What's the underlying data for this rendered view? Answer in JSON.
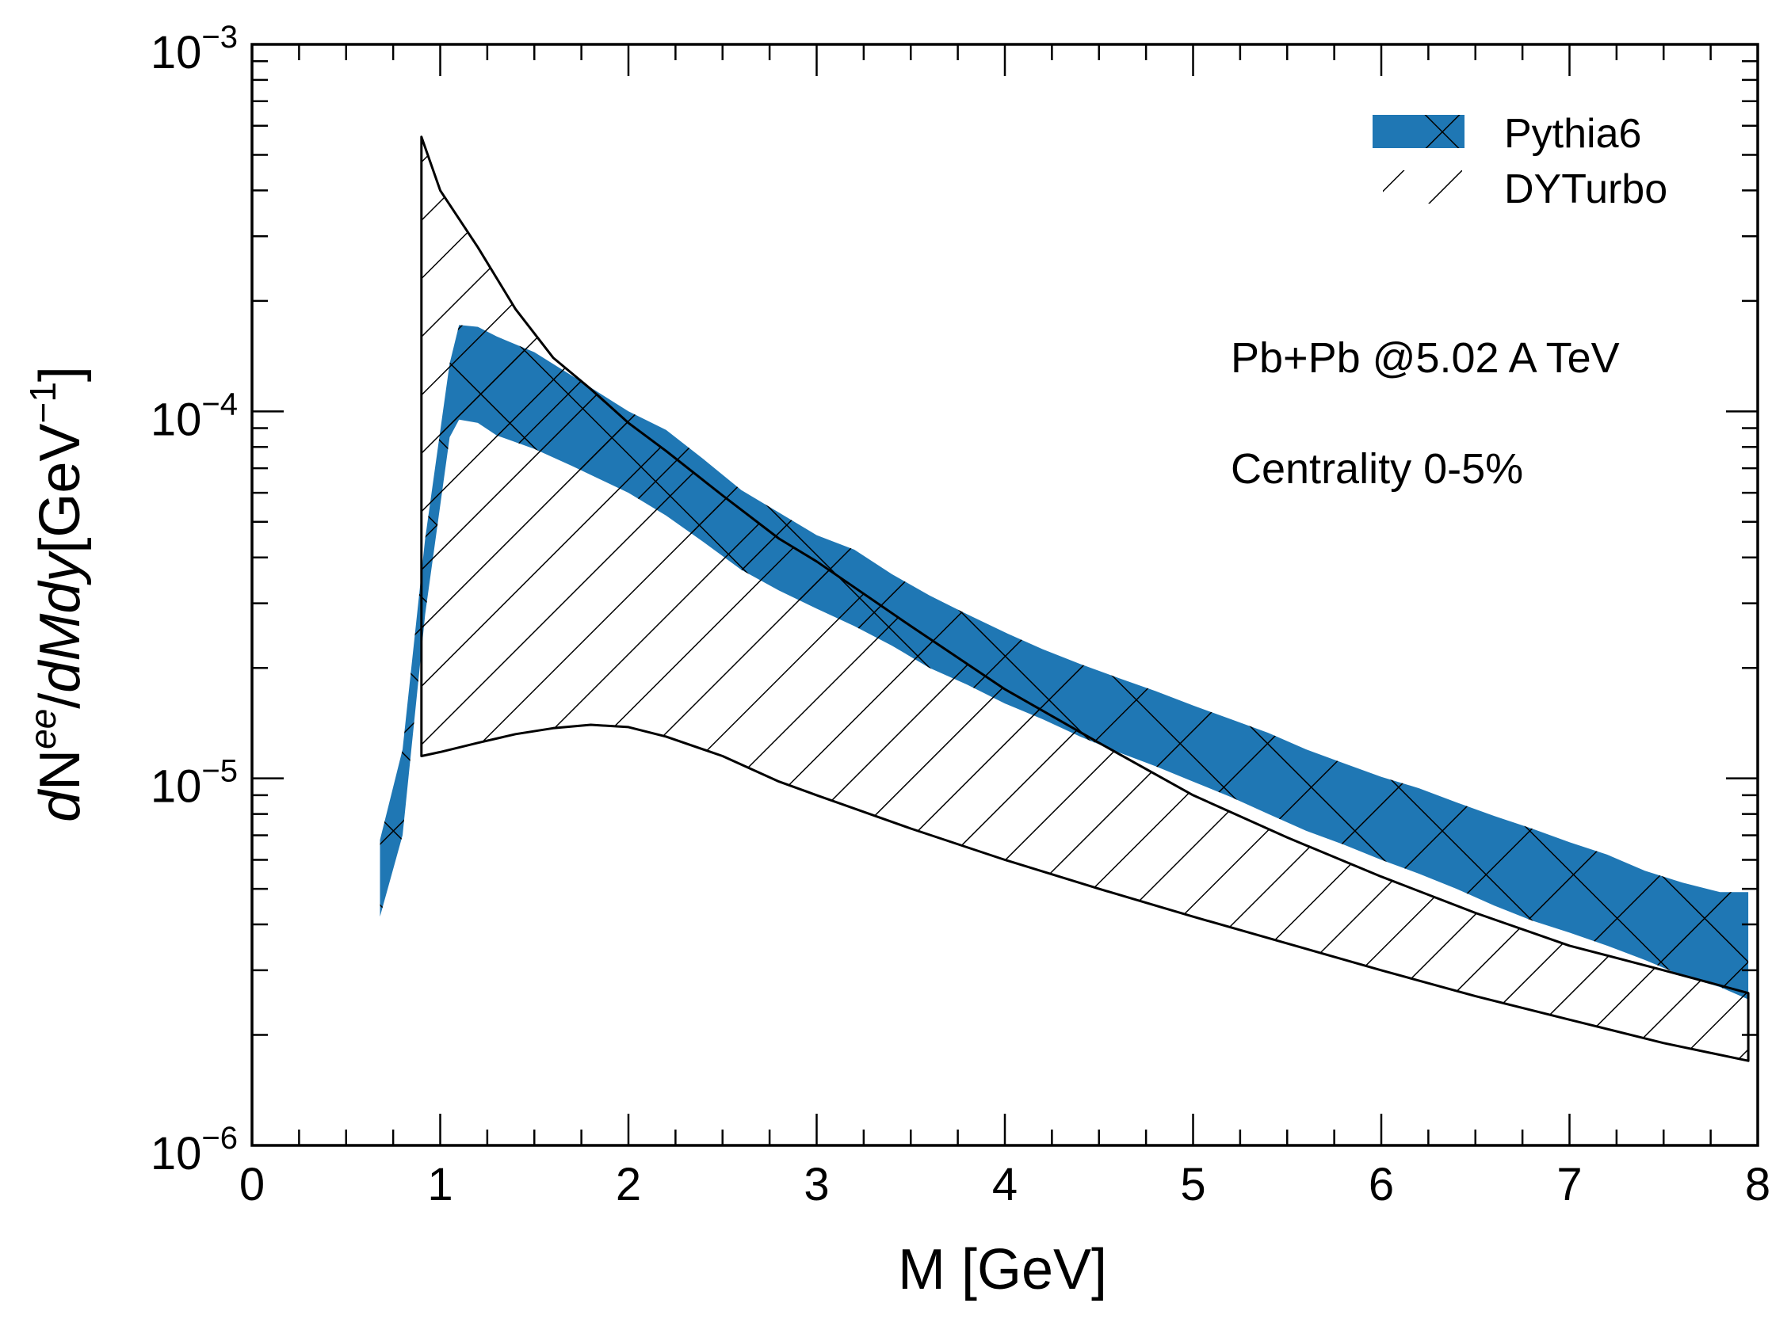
{
  "chart_data": {
    "type": "area",
    "title": "",
    "xlabel": "M [GeV]",
    "ylabel": {
      "d1": "d",
      "N": "N",
      "sup_ee": "ee",
      "slash": "/",
      "dMdy": "dMdy",
      "unit_open": "[GeV",
      "unit_exp": "−1",
      "unit_close": "]"
    },
    "xlim": [
      0,
      8
    ],
    "ylim": [
      1e-06,
      0.001
    ],
    "yscale": "log",
    "x_ticks": [
      "0",
      "1",
      "2",
      "3",
      "4",
      "5",
      "6",
      "7",
      "8"
    ],
    "y_ticks": [
      {
        "base": "10",
        "exp": "−6",
        "value": 1e-06
      },
      {
        "base": "10",
        "exp": "−5",
        "value": 1e-05
      },
      {
        "base": "10",
        "exp": "−4",
        "value": 0.0001
      },
      {
        "base": "10",
        "exp": "−3",
        "value": 0.001
      }
    ],
    "annotations": [
      "Pb+Pb @5.02 A TeV",
      "Centrality 0-5%"
    ],
    "legend": {
      "position": "top-right",
      "entries": [
        "Pythia6",
        "DYTurbo"
      ]
    },
    "colors": {
      "pythia_fill": "#1f77b4",
      "frame": "#000000",
      "hatch": "#000000"
    },
    "series": [
      {
        "name": "Pythia6",
        "style": "filled band with cross hatch",
        "x": [
          0.68,
          0.8,
          0.92,
          1.05,
          1.1,
          1.2,
          1.3,
          1.5,
          1.7,
          2.0,
          2.2,
          2.4,
          2.6,
          2.8,
          3.0,
          3.2,
          3.4,
          3.6,
          3.8,
          4.0,
          4.2,
          4.4,
          4.6,
          4.8,
          5.0,
          5.2,
          5.4,
          5.6,
          5.8,
          6.0,
          6.2,
          6.4,
          6.6,
          6.8,
          7.0,
          7.2,
          7.4,
          7.6,
          7.8,
          7.95
        ],
        "upper": [
          6.8e-06,
          1.2e-05,
          4.5e-05,
          0.000135,
          0.000172,
          0.00017,
          0.00016,
          0.000145,
          0.000125,
          0.0001,
          8.9e-05,
          7.4e-05,
          6.1e-05,
          5.3e-05,
          4.6e-05,
          4.2e-05,
          3.6e-05,
          3.15e-05,
          2.8e-05,
          2.5e-05,
          2.25e-05,
          2.05e-05,
          1.88e-05,
          1.73e-05,
          1.58e-05,
          1.45e-05,
          1.33e-05,
          1.2e-05,
          1.1e-05,
          1.01e-05,
          9.4e-06,
          8.6e-06,
          7.9e-06,
          7.3e-06,
          6.7e-06,
          6.2e-06,
          5.6e-06,
          5.2e-06,
          4.9e-06,
          4.9e-06
        ],
        "lower": [
          4.2e-06,
          7e-06,
          2.8e-05,
          8.5e-05,
          9.5e-05,
          9.3e-05,
          8.6e-05,
          7.9e-05,
          7.1e-05,
          6e-05,
          5.2e-05,
          4.4e-05,
          3.7e-05,
          3.25e-05,
          2.9e-05,
          2.6e-05,
          2.3e-05,
          2e-05,
          1.8e-05,
          1.6e-05,
          1.45e-05,
          1.3e-05,
          1.18e-05,
          1.08e-05,
          9.8e-06,
          8.9e-06,
          8e-06,
          7.2e-06,
          6.6e-06,
          6e-06,
          5.5e-06,
          5e-06,
          4.5e-06,
          4.1e-06,
          3.8e-06,
          3.5e-06,
          3.2e-06,
          2.9e-06,
          2.7e-06,
          2.5e-06
        ]
      },
      {
        "name": "DYTurbo",
        "style": "outlined band with single hatch",
        "x": [
          0.9,
          1.0,
          1.2,
          1.4,
          1.6,
          1.8,
          2.0,
          2.2,
          2.5,
          2.8,
          3.0,
          3.5,
          4.0,
          4.5,
          5.0,
          5.5,
          6.0,
          6.5,
          7.0,
          7.5,
          7.95
        ],
        "upper": [
          0.00056,
          0.0004,
          0.00028,
          0.00019,
          0.00014,
          0.000115,
          9.3e-05,
          7.8e-05,
          5.9e-05,
          4.5e-05,
          3.9e-05,
          2.6e-05,
          1.75e-05,
          1.25e-05,
          9e-06,
          6.9e-06,
          5.4e-06,
          4.3e-06,
          3.5e-06,
          3e-06,
          2.6e-06
        ],
        "lower": [
          1.15e-05,
          1.18e-05,
          1.25e-05,
          1.32e-05,
          1.37e-05,
          1.4e-05,
          1.38e-05,
          1.3e-05,
          1.15e-05,
          9.8e-06,
          9e-06,
          7.3e-06,
          6e-06,
          5e-06,
          4.2e-06,
          3.55e-06,
          3e-06,
          2.55e-06,
          2.2e-06,
          1.9e-06,
          1.7e-06
        ]
      }
    ]
  }
}
